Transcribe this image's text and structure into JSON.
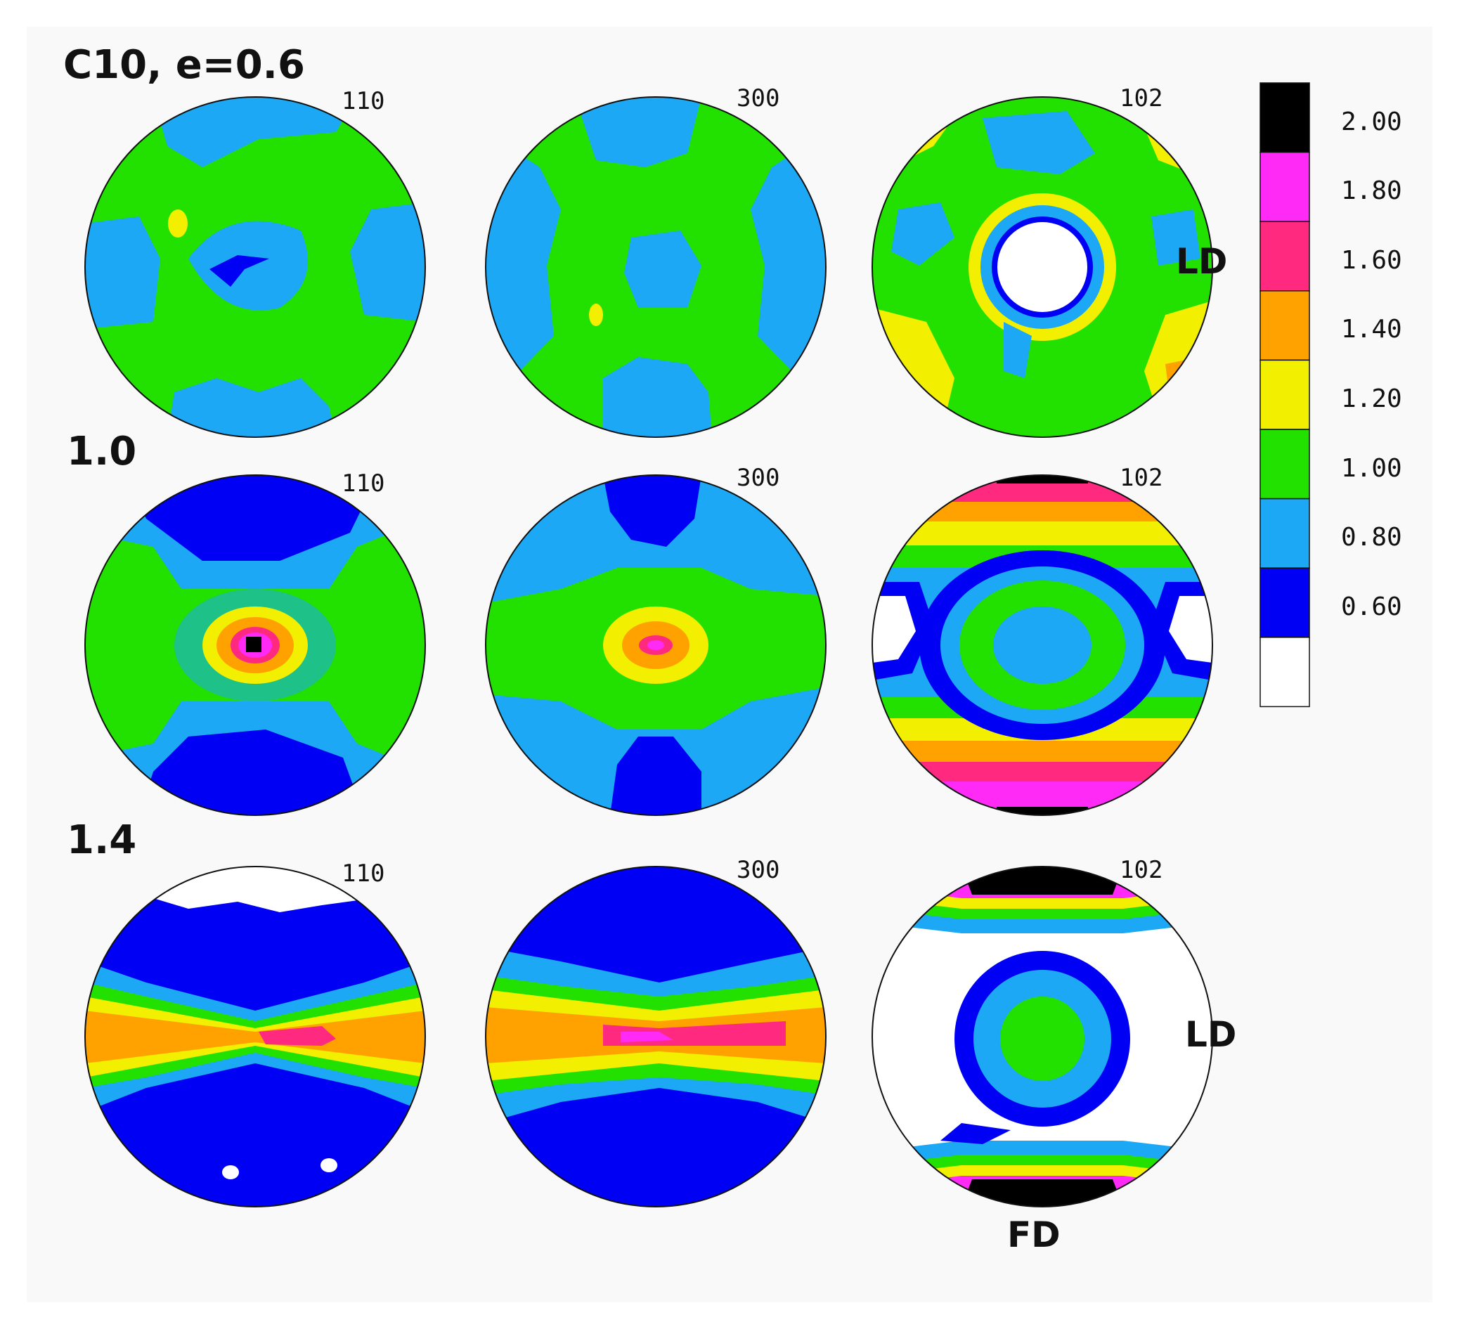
{
  "figure": {
    "rows": [
      {
        "label": "C10, e=0.6",
        "maps": [
          "110",
          "300",
          "102"
        ]
      },
      {
        "label": "1.0",
        "maps": [
          "110",
          "300",
          "102"
        ]
      },
      {
        "label": "1.4",
        "maps": [
          "110",
          "300",
          "102"
        ]
      }
    ],
    "directions": {
      "ld": "LD",
      "fd": "FD"
    },
    "colorbar": {
      "levels": [
        "2.00",
        "1.80",
        "1.60",
        "1.40",
        "1.20",
        "1.00",
        "0.80",
        "0.60"
      ],
      "colors": [
        "#000000",
        "#ff2af5",
        "#ff2a7f",
        "#ffa200",
        "#f2ef00",
        "#22e000",
        "#1ca8f5",
        "#0000f5",
        "#ffffff"
      ]
    }
  }
}
